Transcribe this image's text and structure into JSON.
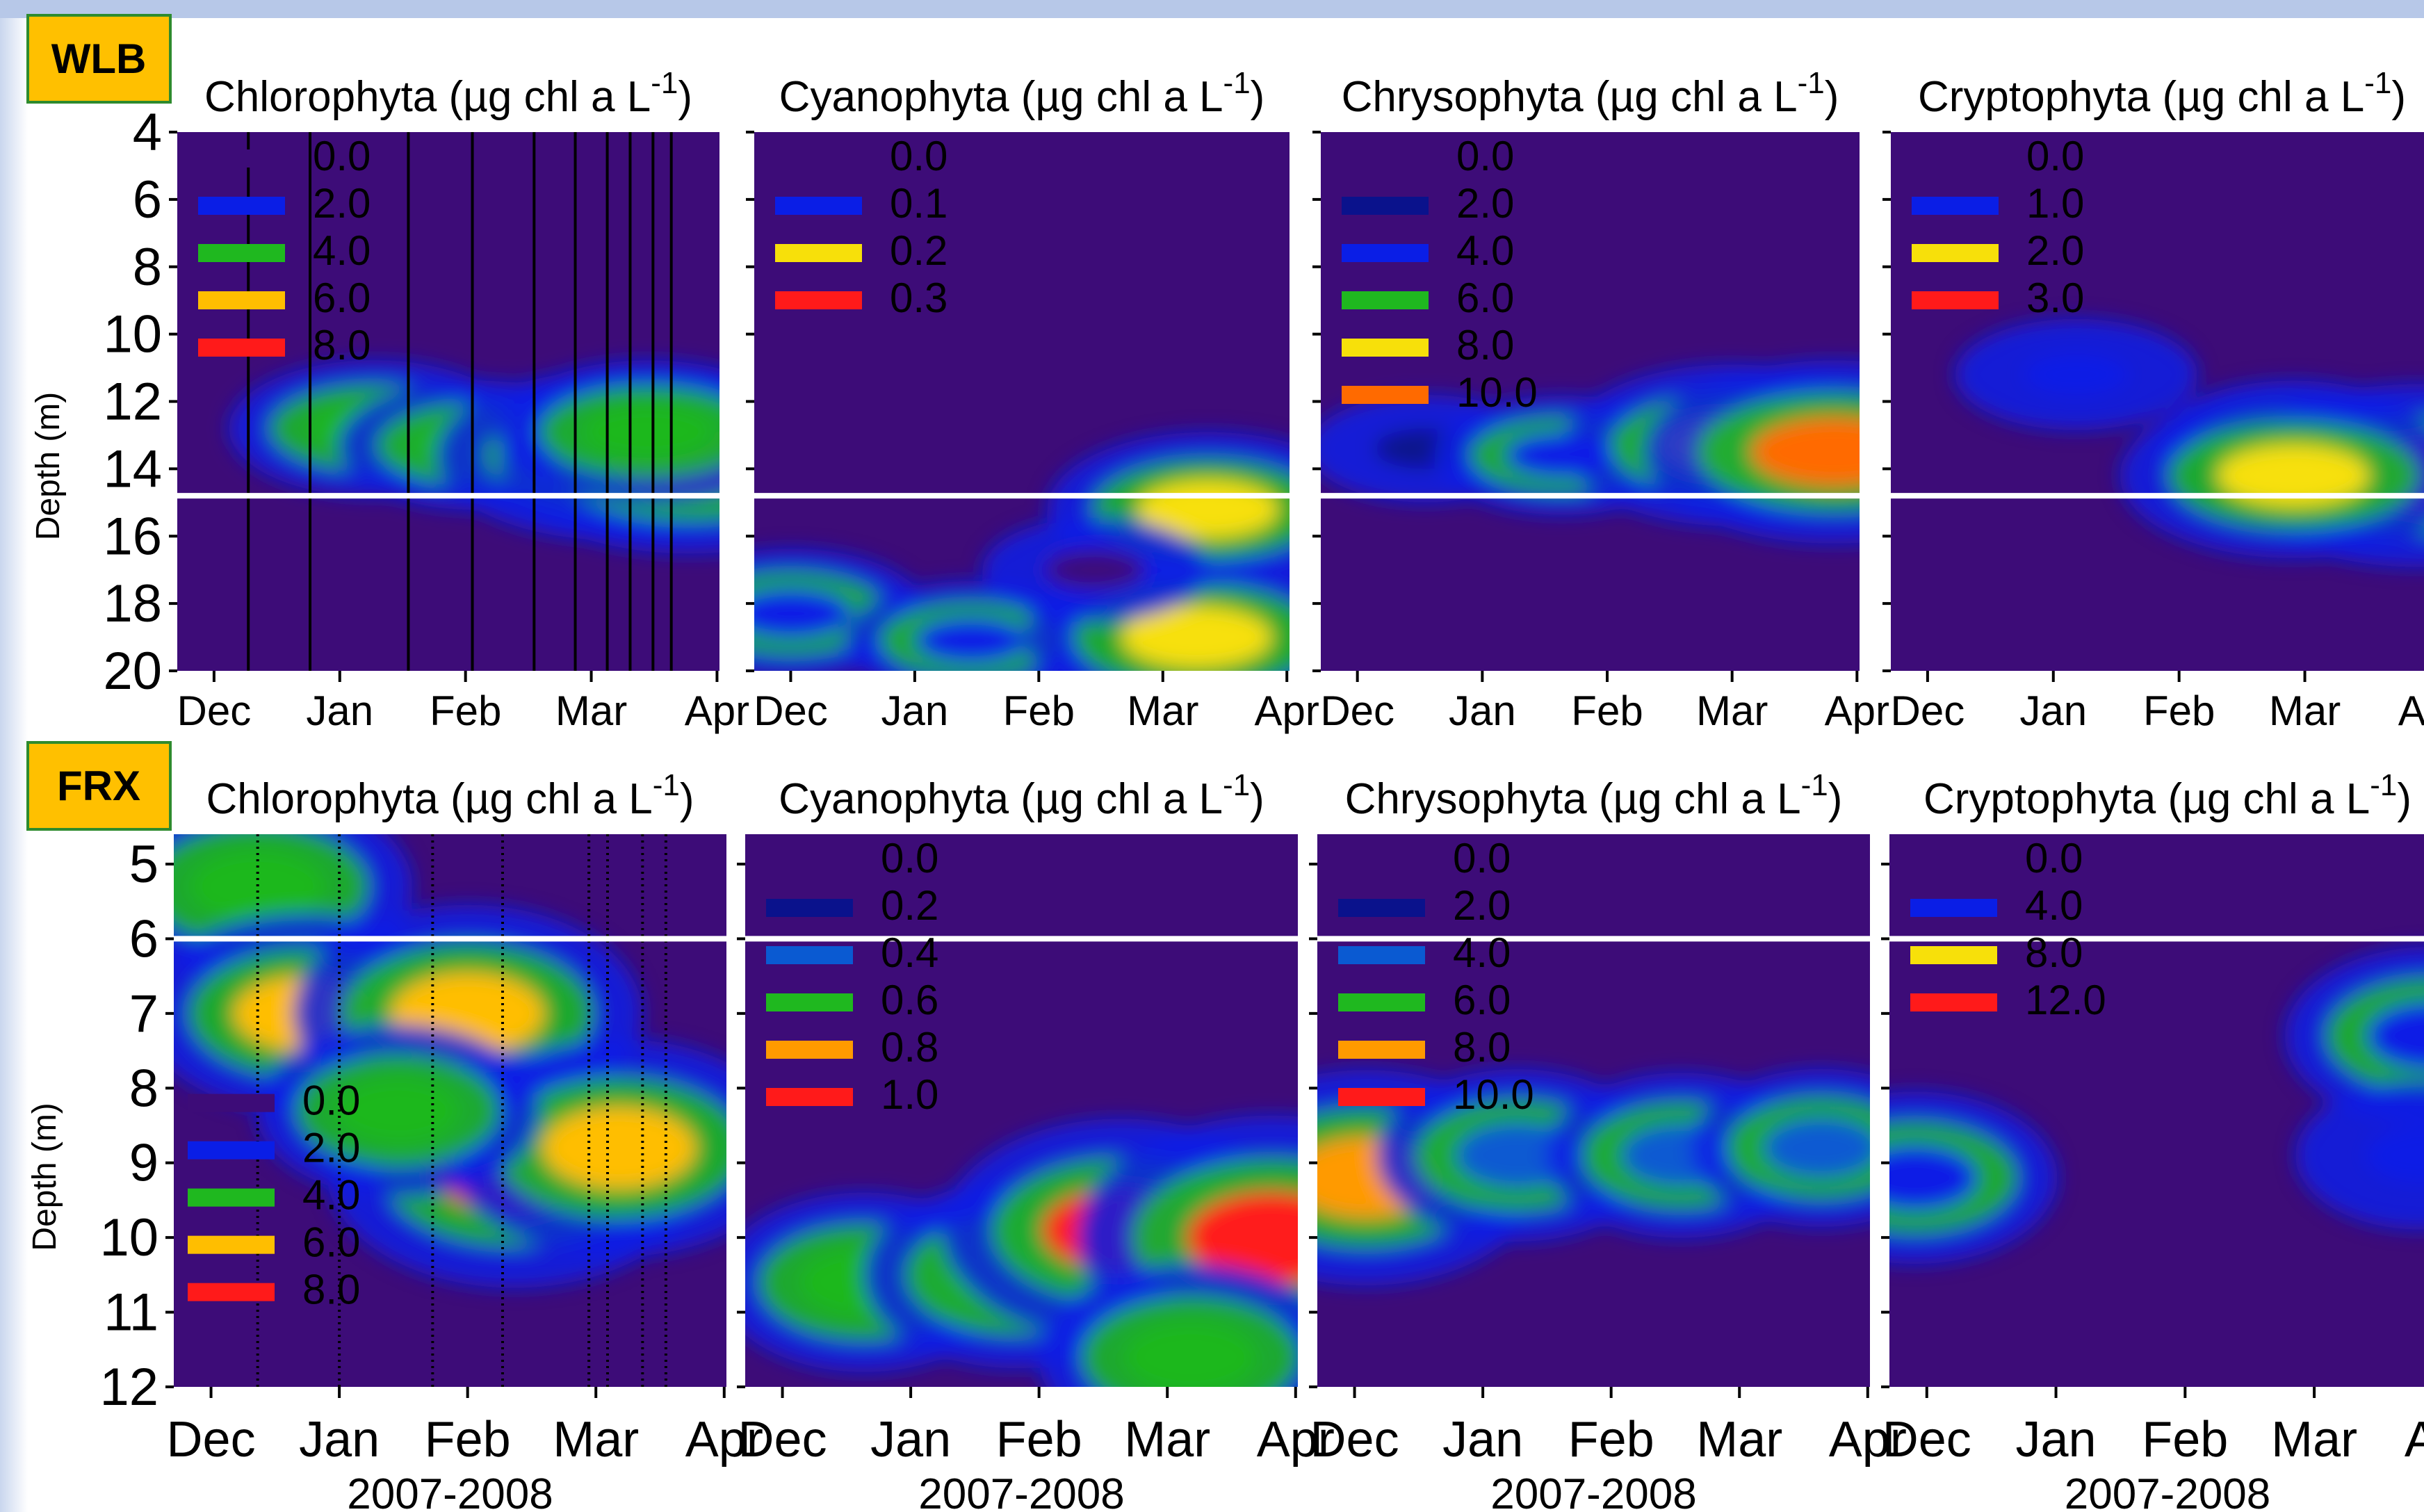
{
  "colors": {
    "background": "#ffffff",
    "plot_fill": "#3d0c78",
    "separator": "#ffffff",
    "site_label_bg": "#ffc000",
    "site_label_border": "#2e8b2e",
    "legend_low": "#3d0c78",
    "legend_blue": "#0a1ee6",
    "legend_green": "#1fb81f",
    "legend_yellow": "#f7e00a",
    "legend_orange": "#ff9a00",
    "legend_red": "#ff1a1a"
  },
  "panels": [
    {
      "row": 0,
      "col": 0,
      "title": "Chlorophyta (µg chl a L",
      "title_sup": "-1",
      ")": ")"
    },
    {
      "row": 0,
      "col": 1,
      "title": "Cyanophyta (µg chl a L",
      "title_sup": "-1"
    },
    {
      "row": 0,
      "col": 2,
      "title": "Chrysophyta (µg chl a L",
      "title_sup": "-1"
    },
    {
      "row": 0,
      "col": 3,
      "title": "Cryptophyta (µg chl a L",
      "title_sup": "-1"
    },
    {
      "row": 1,
      "col": 0,
      "title": "Chlorophyta (µg chl a L",
      "title_sup": "-1"
    },
    {
      "row": 1,
      "col": 1,
      "title": "Cyanophyta (µg chl a L",
      "title_sup": "-1"
    },
    {
      "row": 1,
      "col": 2,
      "title": "Chrysophyta (µg chl a L",
      "title_sup": "-1"
    },
    {
      "row": 1,
      "col": 3,
      "title": "Cryptophyta (µg chl a L",
      "title_sup": "-1"
    }
  ],
  "chart_data": [
    {
      "type": "heatmap",
      "site": "WLB",
      "title": "Chlorophyta (µg chl a L-1)",
      "x": [
        "Dec",
        "Jan",
        "Feb",
        "Mar",
        "Apr"
      ],
      "y_ticks": [
        4,
        6,
        8,
        10,
        12,
        14,
        16,
        18,
        20
      ],
      "ylim": [
        4,
        20
      ],
      "ylabel": "Depth (m)",
      "xlabel": "",
      "legend": {
        "labels": [
          "0.0",
          "2.0",
          "4.0",
          "6.0",
          "8.0"
        ],
        "colors": [
          "#3d0c78",
          "#0a1ee6",
          "#1fb81f",
          "#ffbe00",
          "#ff1a1a"
        ]
      },
      "thermocline_depth": 14.8,
      "sampling_dates": [
        0.25,
        0.52,
        0.95,
        1.23,
        1.5,
        1.68,
        1.82,
        1.92,
        2.02,
        2.1
      ],
      "hotspots": [
        {
          "x": 0.8,
          "depth": 12.8,
          "value": 4.5
        },
        {
          "x": 1.25,
          "depth": 13.3,
          "value": 4.0
        },
        {
          "x": 1.85,
          "depth": 13.6,
          "value": 7.0
        },
        {
          "x": 2.18,
          "depth": 13.8,
          "value": 8.0
        },
        {
          "x": 2.0,
          "depth": 12.9,
          "value": 5.0
        }
      ]
    },
    {
      "type": "heatmap",
      "site": "WLB",
      "title": "Cyanophyta (µg chl a L-1)",
      "x": [
        "Dec",
        "Jan",
        "Feb",
        "Mar",
        "Apr"
      ],
      "y_ticks": [
        4,
        6,
        8,
        10,
        12,
        14,
        16,
        18,
        20
      ],
      "ylim": [
        4,
        20
      ],
      "legend": {
        "labels": [
          "0.0",
          "0.1",
          "0.2",
          "0.3"
        ],
        "colors": [
          "#3d0c78",
          "#0a1ee6",
          "#f7e00a",
          "#ff1a1a"
        ]
      },
      "thermocline_depth": 14.8,
      "hotspots": [
        {
          "x": 0.1,
          "depth": 18.3,
          "value": 0.15
        },
        {
          "x": 0.9,
          "depth": 19.1,
          "value": 0.12
        },
        {
          "x": 1.9,
          "depth": 19.0,
          "value": 0.25
        },
        {
          "x": 1.95,
          "depth": 15.2,
          "value": 0.22
        },
        {
          "x": 1.45,
          "depth": 17.0,
          "value": 0.08
        }
      ]
    },
    {
      "type": "heatmap",
      "site": "WLB",
      "title": "Chrysophyta (µg chl a L-1)",
      "x": [
        "Dec",
        "Jan",
        "Feb",
        "Mar",
        "Apr"
      ],
      "y_ticks": [
        4,
        6,
        8,
        10,
        12,
        14,
        16,
        18,
        20
      ],
      "ylim": [
        4,
        20
      ],
      "legend": {
        "labels": [
          "0.0",
          "2.0",
          "4.0",
          "6.0",
          "8.0",
          "10.0"
        ],
        "colors": [
          "#3d0c78",
          "#0a128c",
          "#0a1ee6",
          "#1fb81f",
          "#f7e00a",
          "#ff6a00"
        ]
      },
      "thermocline_depth": 14.8,
      "hotspots": [
        {
          "x": 0.4,
          "depth": 13.4,
          "value": 3.0
        },
        {
          "x": 1.0,
          "depth": 13.6,
          "value": 4.0
        },
        {
          "x": 1.75,
          "depth": 13.3,
          "value": 8.0
        },
        {
          "x": 2.2,
          "depth": 13.5,
          "value": 10.0
        }
      ]
    },
    {
      "type": "heatmap",
      "site": "WLB",
      "title": "Cryptophyta (µg chl a L-1)",
      "x": [
        "Dec",
        "Jan",
        "Feb",
        "Mar",
        "Apr"
      ],
      "y_ticks": [
        4,
        6,
        8,
        10,
        12,
        14,
        16,
        18,
        20
      ],
      "ylim": [
        4,
        20
      ],
      "legend": {
        "labels": [
          "0.0",
          "1.0",
          "2.0",
          "3.0"
        ],
        "colors": [
          "#3d0c78",
          "#0a1ee6",
          "#f7e00a",
          "#ff1a1a"
        ]
      },
      "thermocline_depth": 14.8,
      "hotspots": [
        {
          "x": 0.75,
          "depth": 11.2,
          "value": 1.0
        },
        {
          "x": 1.7,
          "depth": 13.3,
          "value": 1.5
        },
        {
          "x": 2.25,
          "depth": 14.2,
          "value": 3.0
        },
        {
          "x": 1.7,
          "depth": 14.2,
          "value": 2.5
        }
      ]
    },
    {
      "type": "heatmap",
      "site": "FRX",
      "title": "Chlorophyta (µg chl a L-1)",
      "x": [
        "Dec",
        "Jan",
        "Feb",
        "Mar",
        "Apr"
      ],
      "y_ticks": [
        5,
        6,
        7,
        8,
        9,
        10,
        11,
        12
      ],
      "ylim": [
        4.6,
        12
      ],
      "ylabel": "Depth (m)",
      "xlabel": "2007-2008",
      "legend": {
        "labels": [
          "0.0",
          "2.0",
          "4.0",
          "6.0",
          "8.0"
        ],
        "colors": [
          "#3d0c78",
          "#0a1ee6",
          "#1fb81f",
          "#ffbe00",
          "#ff1a1a"
        ]
      },
      "thermocline_depth": 6.0,
      "sampling_dates": [
        0.3,
        0.65,
        1.05,
        1.35,
        1.72,
        1.8,
        1.95,
        2.05
      ],
      "hotspots": [
        {
          "x": 0.3,
          "depth": 5.3,
          "value": 5.0
        },
        {
          "x": 0.5,
          "depth": 7.0,
          "value": 5.5
        },
        {
          "x": 1.2,
          "depth": 7.0,
          "value": 6.5
        },
        {
          "x": 1.4,
          "depth": 9.1,
          "value": 7.5
        },
        {
          "x": 1.85,
          "depth": 8.8,
          "value": 6.5
        },
        {
          "x": 0.9,
          "depth": 8.3,
          "value": 4.0
        }
      ]
    },
    {
      "type": "heatmap",
      "site": "FRX",
      "title": "Cyanophyta (µg chl a L-1)",
      "x": [
        "Dec",
        "Jan",
        "Feb",
        "Mar",
        "Apr"
      ],
      "y_ticks": [
        5,
        6,
        7,
        8,
        9,
        10,
        11,
        12
      ],
      "ylim": [
        4.6,
        12
      ],
      "xlabel": "2007-2008",
      "legend": {
        "labels": [
          "0.0",
          "0.2",
          "0.4",
          "0.6",
          "0.8",
          "1.0"
        ],
        "colors": [
          "#3d0c78",
          "#0a128c",
          "#0a5ad2",
          "#1fb81f",
          "#ff9a00",
          "#ff1a1a"
        ]
      },
      "thermocline_depth": 6.0,
      "hotspots": [
        {
          "x": 0.45,
          "depth": 10.6,
          "value": 0.55
        },
        {
          "x": 1.1,
          "depth": 10.5,
          "value": 0.6
        },
        {
          "x": 1.55,
          "depth": 9.9,
          "value": 0.85
        },
        {
          "x": 2.2,
          "depth": 10.0,
          "value": 1.0
        },
        {
          "x": 1.85,
          "depth": 11.6,
          "value": 0.6
        }
      ]
    },
    {
      "type": "heatmap",
      "site": "FRX",
      "title": "Chrysophyta (µg chl a L-1)",
      "x": [
        "Dec",
        "Jan",
        "Feb",
        "Mar",
        "Apr"
      ],
      "y_ticks": [
        5,
        6,
        7,
        8,
        9,
        10,
        11,
        12
      ],
      "ylim": [
        4.6,
        12
      ],
      "xlabel": "2007-2008",
      "legend": {
        "labels": [
          "0.0",
          "2.0",
          "4.0",
          "6.0",
          "8.0",
          "10.0"
        ],
        "colors": [
          "#3d0c78",
          "#0a128c",
          "#0a5ad2",
          "#1fb81f",
          "#ff9a00",
          "#ff1a1a"
        ]
      },
      "thermocline_depth": 6.0,
      "hotspots": [
        {
          "x": 0.15,
          "depth": 9.2,
          "value": 8.0
        },
        {
          "x": 0.8,
          "depth": 8.9,
          "value": 5.0
        },
        {
          "x": 1.5,
          "depth": 8.9,
          "value": 4.5
        },
        {
          "x": 2.1,
          "depth": 8.8,
          "value": 4.0
        }
      ]
    },
    {
      "type": "heatmap",
      "site": "FRX",
      "title": "Cryptophyta (µg chl a L-1)",
      "x": [
        "Dec",
        "Jan",
        "Feb",
        "Mar",
        "Apr"
      ],
      "y_ticks": [
        5,
        6,
        7,
        8,
        9,
        10,
        11,
        12
      ],
      "ylim": [
        4.6,
        12
      ],
      "xlabel": "2007-2008",
      "legend": {
        "labels": [
          "0.0",
          "4.0",
          "8.0",
          "12.0"
        ],
        "colors": [
          "#3d0c78",
          "#0a1ee6",
          "#f7e00a",
          "#ff1a1a"
        ]
      },
      "thermocline_depth": 6.0,
      "hotspots": [
        {
          "x": 0.05,
          "depth": 9.2,
          "value": 6.0
        },
        {
          "x": 2.25,
          "depth": 7.3,
          "value": 6.5
        },
        {
          "x": 2.2,
          "depth": 8.9,
          "value": 4.0
        }
      ]
    }
  ],
  "labels": {
    "site_top": "WLB",
    "site_bottom": "FRX",
    "ylabel": "Depth (m)",
    "year": "2007-2008",
    "months": [
      "Dec",
      "Jan",
      "Feb",
      "Mar",
      "Apr"
    ]
  }
}
